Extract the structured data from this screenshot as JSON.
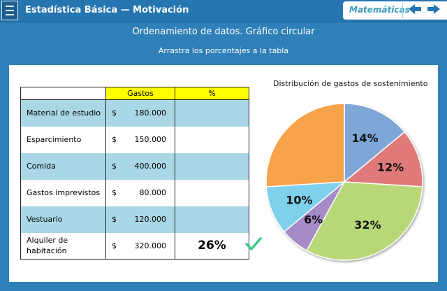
{
  "header": {
    "title": "Estadística Básica  —  Motivación",
    "subject": "Matemáticas"
  },
  "headings": {
    "main": "Ordenamiento de datos. Gráfico circular",
    "instruction": "Arrastra los porcentajes a la tabla"
  },
  "table": {
    "columns": [
      "",
      "Gastos",
      "%"
    ],
    "rows": [
      {
        "name": "Material de estudio",
        "currency": "$",
        "amount": "180.000",
        "percent": ""
      },
      {
        "name": "Esparcimiento",
        "currency": "$",
        "amount": "150.000",
        "percent": ""
      },
      {
        "name": "Comida",
        "currency": "$",
        "amount": "400.000",
        "percent": ""
      },
      {
        "name": "Gastos imprevistos",
        "currency": "$",
        "amount": "80.000",
        "percent": ""
      },
      {
        "name": "Vestuario",
        "currency": "$",
        "amount": "120.000",
        "percent": ""
      },
      {
        "name": "Alquiler de habitación",
        "currency": "$",
        "amount": "320.000",
        "percent": "26%"
      }
    ]
  },
  "chart_data": {
    "type": "pie",
    "title": "Distribución de gastos de sostenimiento",
    "slices": [
      {
        "label": "14%",
        "value": 14,
        "color": "#7ea7d8"
      },
      {
        "label": "12%",
        "value": 12,
        "color": "#e07a7a"
      },
      {
        "label": "32%",
        "value": 32,
        "color": "#b8d878"
      },
      {
        "label": "6%",
        "value": 6,
        "color": "#a58cc7"
      },
      {
        "label": "10%",
        "value": 10,
        "color": "#7fd0ec"
      },
      {
        "label": "",
        "value": 26,
        "color": "#f6a34b"
      }
    ]
  },
  "colors": {
    "topbar": "#2575b0",
    "background": "#2f7fb8",
    "row_shade": "#a9d7e6",
    "header_highlight": "#ffff00",
    "check": "#3cc98a"
  }
}
